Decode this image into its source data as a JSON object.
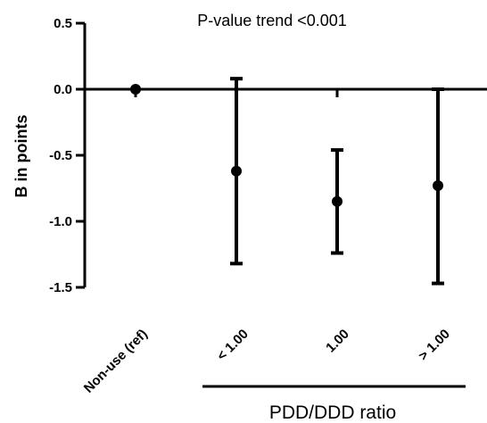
{
  "chart_data": {
    "type": "scatter",
    "title": "",
    "annotation": "P-value trend <0.001",
    "ylabel": "B in points",
    "xgroup_label": "PDD/DDD ratio",
    "ylim": [
      -1.5,
      0.5
    ],
    "yticks": [
      0.5,
      0.0,
      -0.5,
      -1.0,
      -1.5
    ],
    "ytick_labels": [
      "0.5",
      "0.0",
      "-0.5",
      "-1.0",
      "-1.5"
    ],
    "categories": [
      "Non-use (ref)",
      "< 1.00",
      "1.00",
      "> 1.00"
    ],
    "values": [
      0.0,
      -0.62,
      -0.85,
      -0.73
    ],
    "lower": [
      0.0,
      -1.32,
      -1.24,
      -1.47
    ],
    "upper": [
      0.0,
      0.08,
      -0.46,
      0.0
    ],
    "grid": false,
    "legend": "none"
  }
}
